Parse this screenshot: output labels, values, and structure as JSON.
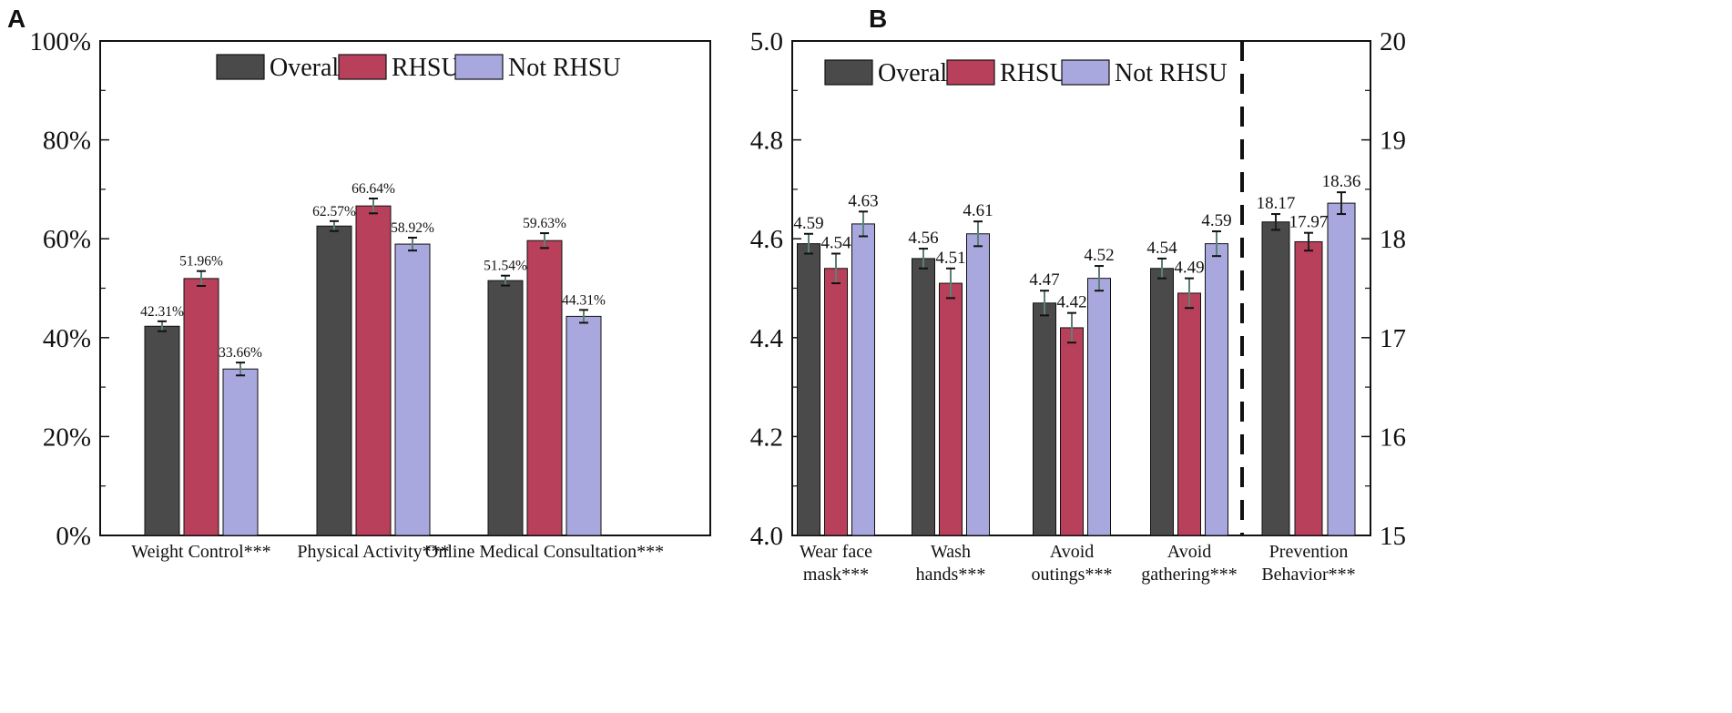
{
  "colors": {
    "overall": "#4a4a4a",
    "rhsu": "#b8405a",
    "not_rhsu": "#a9a8de",
    "errorbar": "#5c7f76",
    "errorbar_dark": "#222222"
  },
  "chart_data": [
    {
      "panel": "A",
      "type": "bar",
      "title": "",
      "xlabel": "",
      "ylabel": "",
      "ylim": [
        0,
        100
      ],
      "y_ticks": [
        "0%",
        "20%",
        "40%",
        "60%",
        "80%",
        "100%"
      ],
      "y_tick_values": [
        0,
        20,
        40,
        60,
        80,
        100
      ],
      "legend": [
        "Overall",
        "RHSU",
        "Not RHSU"
      ],
      "legend_position": "top-center",
      "categories": [
        "Weight Control***",
        "Physical Activity***",
        "Online Medical Consultation***"
      ],
      "series": [
        {
          "name": "Overall",
          "values": [
            42.31,
            62.57,
            51.54
          ],
          "labels": [
            "42.31%",
            "62.57%",
            "51.54%"
          ],
          "errors": [
            1.0,
            1.0,
            1.0
          ]
        },
        {
          "name": "RHSU",
          "values": [
            51.96,
            66.64,
            59.63
          ],
          "labels": [
            "51.96%",
            "66.64%",
            "59.63%"
          ],
          "errors": [
            1.5,
            1.5,
            1.5
          ]
        },
        {
          "name": "Not RHSU",
          "values": [
            33.66,
            58.92,
            44.31
          ],
          "labels": [
            "33.66%",
            "58.92%",
            "44.31%"
          ],
          "errors": [
            1.3,
            1.3,
            1.3
          ]
        }
      ]
    },
    {
      "panel": "B",
      "type": "bar",
      "title": "",
      "xlabel": "",
      "ylabel": "",
      "ylim": [
        4.0,
        5.0
      ],
      "y_ticks": [
        "4.0",
        "4.2",
        "4.4",
        "4.6",
        "4.8",
        "5.0"
      ],
      "y_tick_values": [
        4.0,
        4.2,
        4.4,
        4.6,
        4.8,
        5.0
      ],
      "y2lim": [
        15,
        20
      ],
      "y2_ticks": [
        "15",
        "16",
        "17",
        "18",
        "19",
        "20"
      ],
      "y2_tick_values": [
        15,
        16,
        17,
        18,
        19,
        20
      ],
      "legend": [
        "Overall",
        "RHSU",
        "Not RHSU"
      ],
      "legend_position": "top-left",
      "categories": [
        {
          "lines": [
            "Wear face",
            "mask***"
          ],
          "axis": "left"
        },
        {
          "lines": [
            "Wash",
            "hands***"
          ],
          "axis": "left"
        },
        {
          "lines": [
            "Avoid",
            "outings***"
          ],
          "axis": "left"
        },
        {
          "lines": [
            "Avoid",
            "gathering***"
          ],
          "axis": "left"
        },
        {
          "lines": [
            "Prevention",
            "Behavior***"
          ],
          "axis": "right"
        }
      ],
      "series": [
        {
          "name": "Overall",
          "values": [
            4.59,
            4.56,
            4.47,
            4.54,
            18.17
          ],
          "labels": [
            "4.59",
            "4.56",
            "4.47",
            "4.54",
            "18.17"
          ],
          "errors": [
            0.02,
            0.02,
            0.025,
            0.02,
            0.08
          ]
        },
        {
          "name": "RHSU",
          "values": [
            4.54,
            4.51,
            4.42,
            4.49,
            17.97
          ],
          "labels": [
            "4.54",
            "4.51",
            "4.42",
            "4.49",
            "17.97"
          ],
          "errors": [
            0.03,
            0.03,
            0.03,
            0.03,
            0.09
          ]
        },
        {
          "name": "Not RHSU",
          "values": [
            4.63,
            4.61,
            4.52,
            4.59,
            18.36
          ],
          "labels": [
            "4.63",
            "4.61",
            "4.52",
            "4.59",
            "18.36"
          ],
          "errors": [
            0.025,
            0.025,
            0.025,
            0.025,
            0.11
          ]
        }
      ]
    }
  ]
}
